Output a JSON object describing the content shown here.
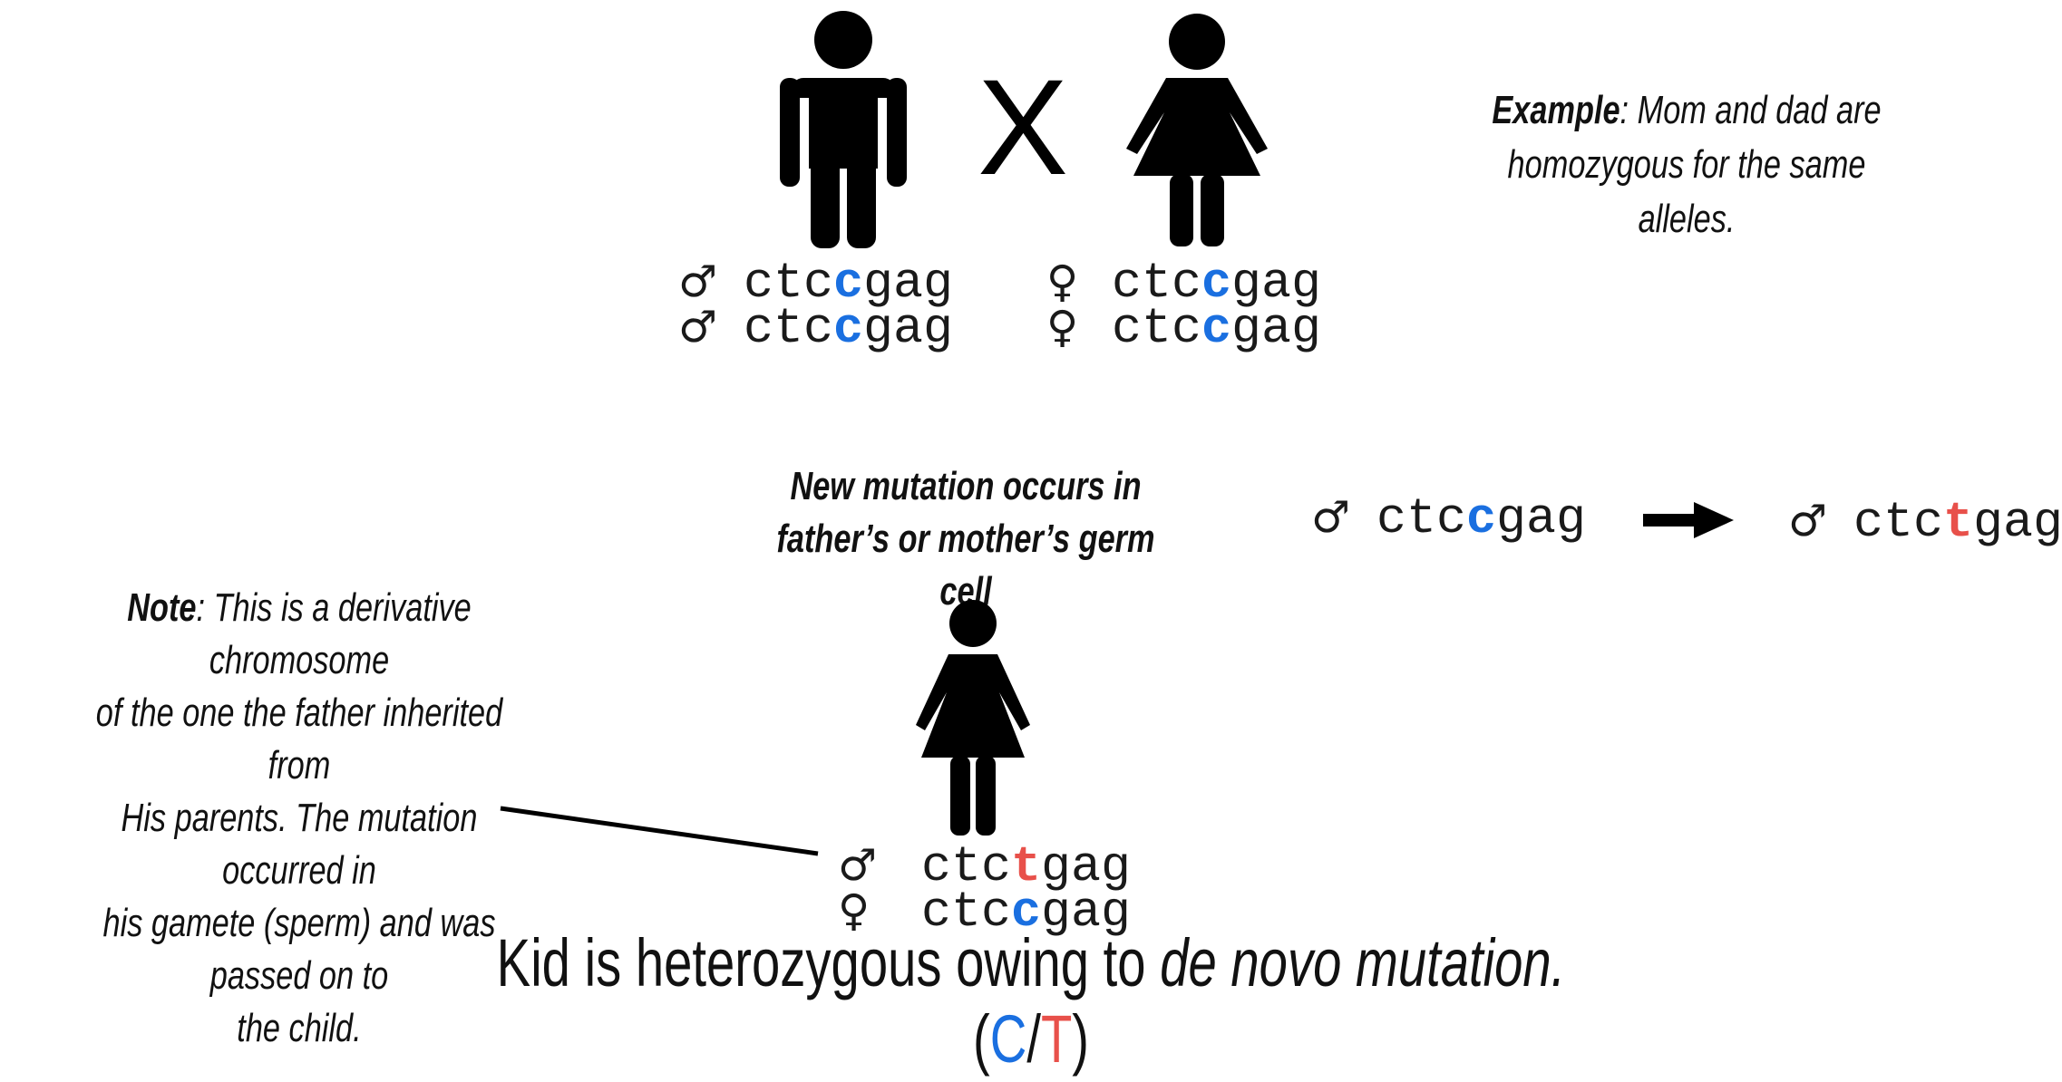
{
  "parents": {
    "cross_symbol": "X",
    "father_icon": "man-icon",
    "mother_icon": "woman-icon",
    "father_alleles": [
      {
        "symbol": "♂",
        "pre": "ctc",
        "base": "c",
        "post": "gag"
      },
      {
        "symbol": "♂",
        "pre": "ctc",
        "base": "c",
        "post": "gag"
      }
    ],
    "mother_alleles": [
      {
        "symbol": "♀",
        "pre": "ctc",
        "base": "c",
        "post": "gag"
      },
      {
        "symbol": "♀",
        "pre": "ctc",
        "base": "c",
        "post": "gag"
      }
    ]
  },
  "example_note": {
    "label": "Example",
    "line1": ": Mom and dad are",
    "line2": "homozygous for the same alleles."
  },
  "mutation": {
    "caption_line1": "New mutation occurs in",
    "caption_line2": "father’s or mother’s germ cell",
    "before": {
      "symbol": "♂",
      "pre": "ctc",
      "base": "c",
      "post": "gag"
    },
    "after": {
      "symbol": "♂",
      "pre": "ctc",
      "base": "t",
      "post": "gag"
    }
  },
  "note": {
    "label": "Note",
    "line1": ": This is a derivative chromosome",
    "line2": "of the one the father inherited from",
    "line3": "His parents.  The mutation occurred in",
    "line4": "his gamete (sperm) and was passed on to",
    "line5": "the child."
  },
  "child": {
    "icon": "girl-icon",
    "alleles": [
      {
        "symbol": "♂",
        "pre": "ctc",
        "base": "t",
        "post": "gag"
      },
      {
        "symbol": "♀",
        "pre": "ctc",
        "base": "c",
        "post": "gag"
      }
    ]
  },
  "conclusion": {
    "text": "Kid is heterozygous owing to ",
    "italic": "de novo mutation.",
    "genotype_open": "(",
    "genotype_c": "C",
    "genotype_slash": "/",
    "genotype_t": "T",
    "genotype_close": ")"
  },
  "colors": {
    "original_base": "#1a6fe0",
    "mutated_base": "#e8504a"
  }
}
